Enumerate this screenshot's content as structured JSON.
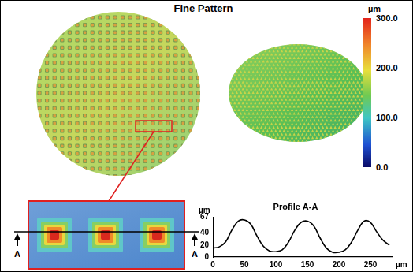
{
  "title": "Fine Pattern",
  "colorbar": {
    "unit": "µm",
    "range": [
      0,
      300
    ],
    "ticks": [
      {
        "value": 300,
        "label": "300.0"
      },
      {
        "value": 200,
        "label": "200.0"
      },
      {
        "value": 100,
        "label": "100.0"
      },
      {
        "value": 0,
        "label": "0.0"
      }
    ]
  },
  "inset": {
    "section_labels": [
      "A",
      "A"
    ]
  },
  "chart_data": {
    "type": "line",
    "title": "Profile A-A",
    "x": [
      0,
      10,
      20,
      30,
      40,
      50,
      60,
      70,
      80,
      90,
      100,
      110,
      120,
      130,
      140,
      150,
      160,
      170,
      180,
      190,
      200,
      210,
      220,
      230,
      240,
      250,
      260,
      270,
      280
    ],
    "values": [
      15,
      17,
      25,
      45,
      60,
      62,
      55,
      35,
      18,
      10,
      9,
      12,
      25,
      45,
      58,
      60,
      52,
      32,
      15,
      8,
      8,
      12,
      25,
      45,
      60,
      58,
      42,
      28,
      20
    ],
    "x_label": "µm",
    "y_label": "µm",
    "xlim": [
      0,
      285
    ],
    "ylim": [
      0,
      67
    ],
    "xticks": [
      0,
      50,
      100,
      150,
      200,
      250
    ],
    "yticks": [
      0,
      20,
      40,
      67
    ],
    "color": "#000000",
    "grid": false
  }
}
